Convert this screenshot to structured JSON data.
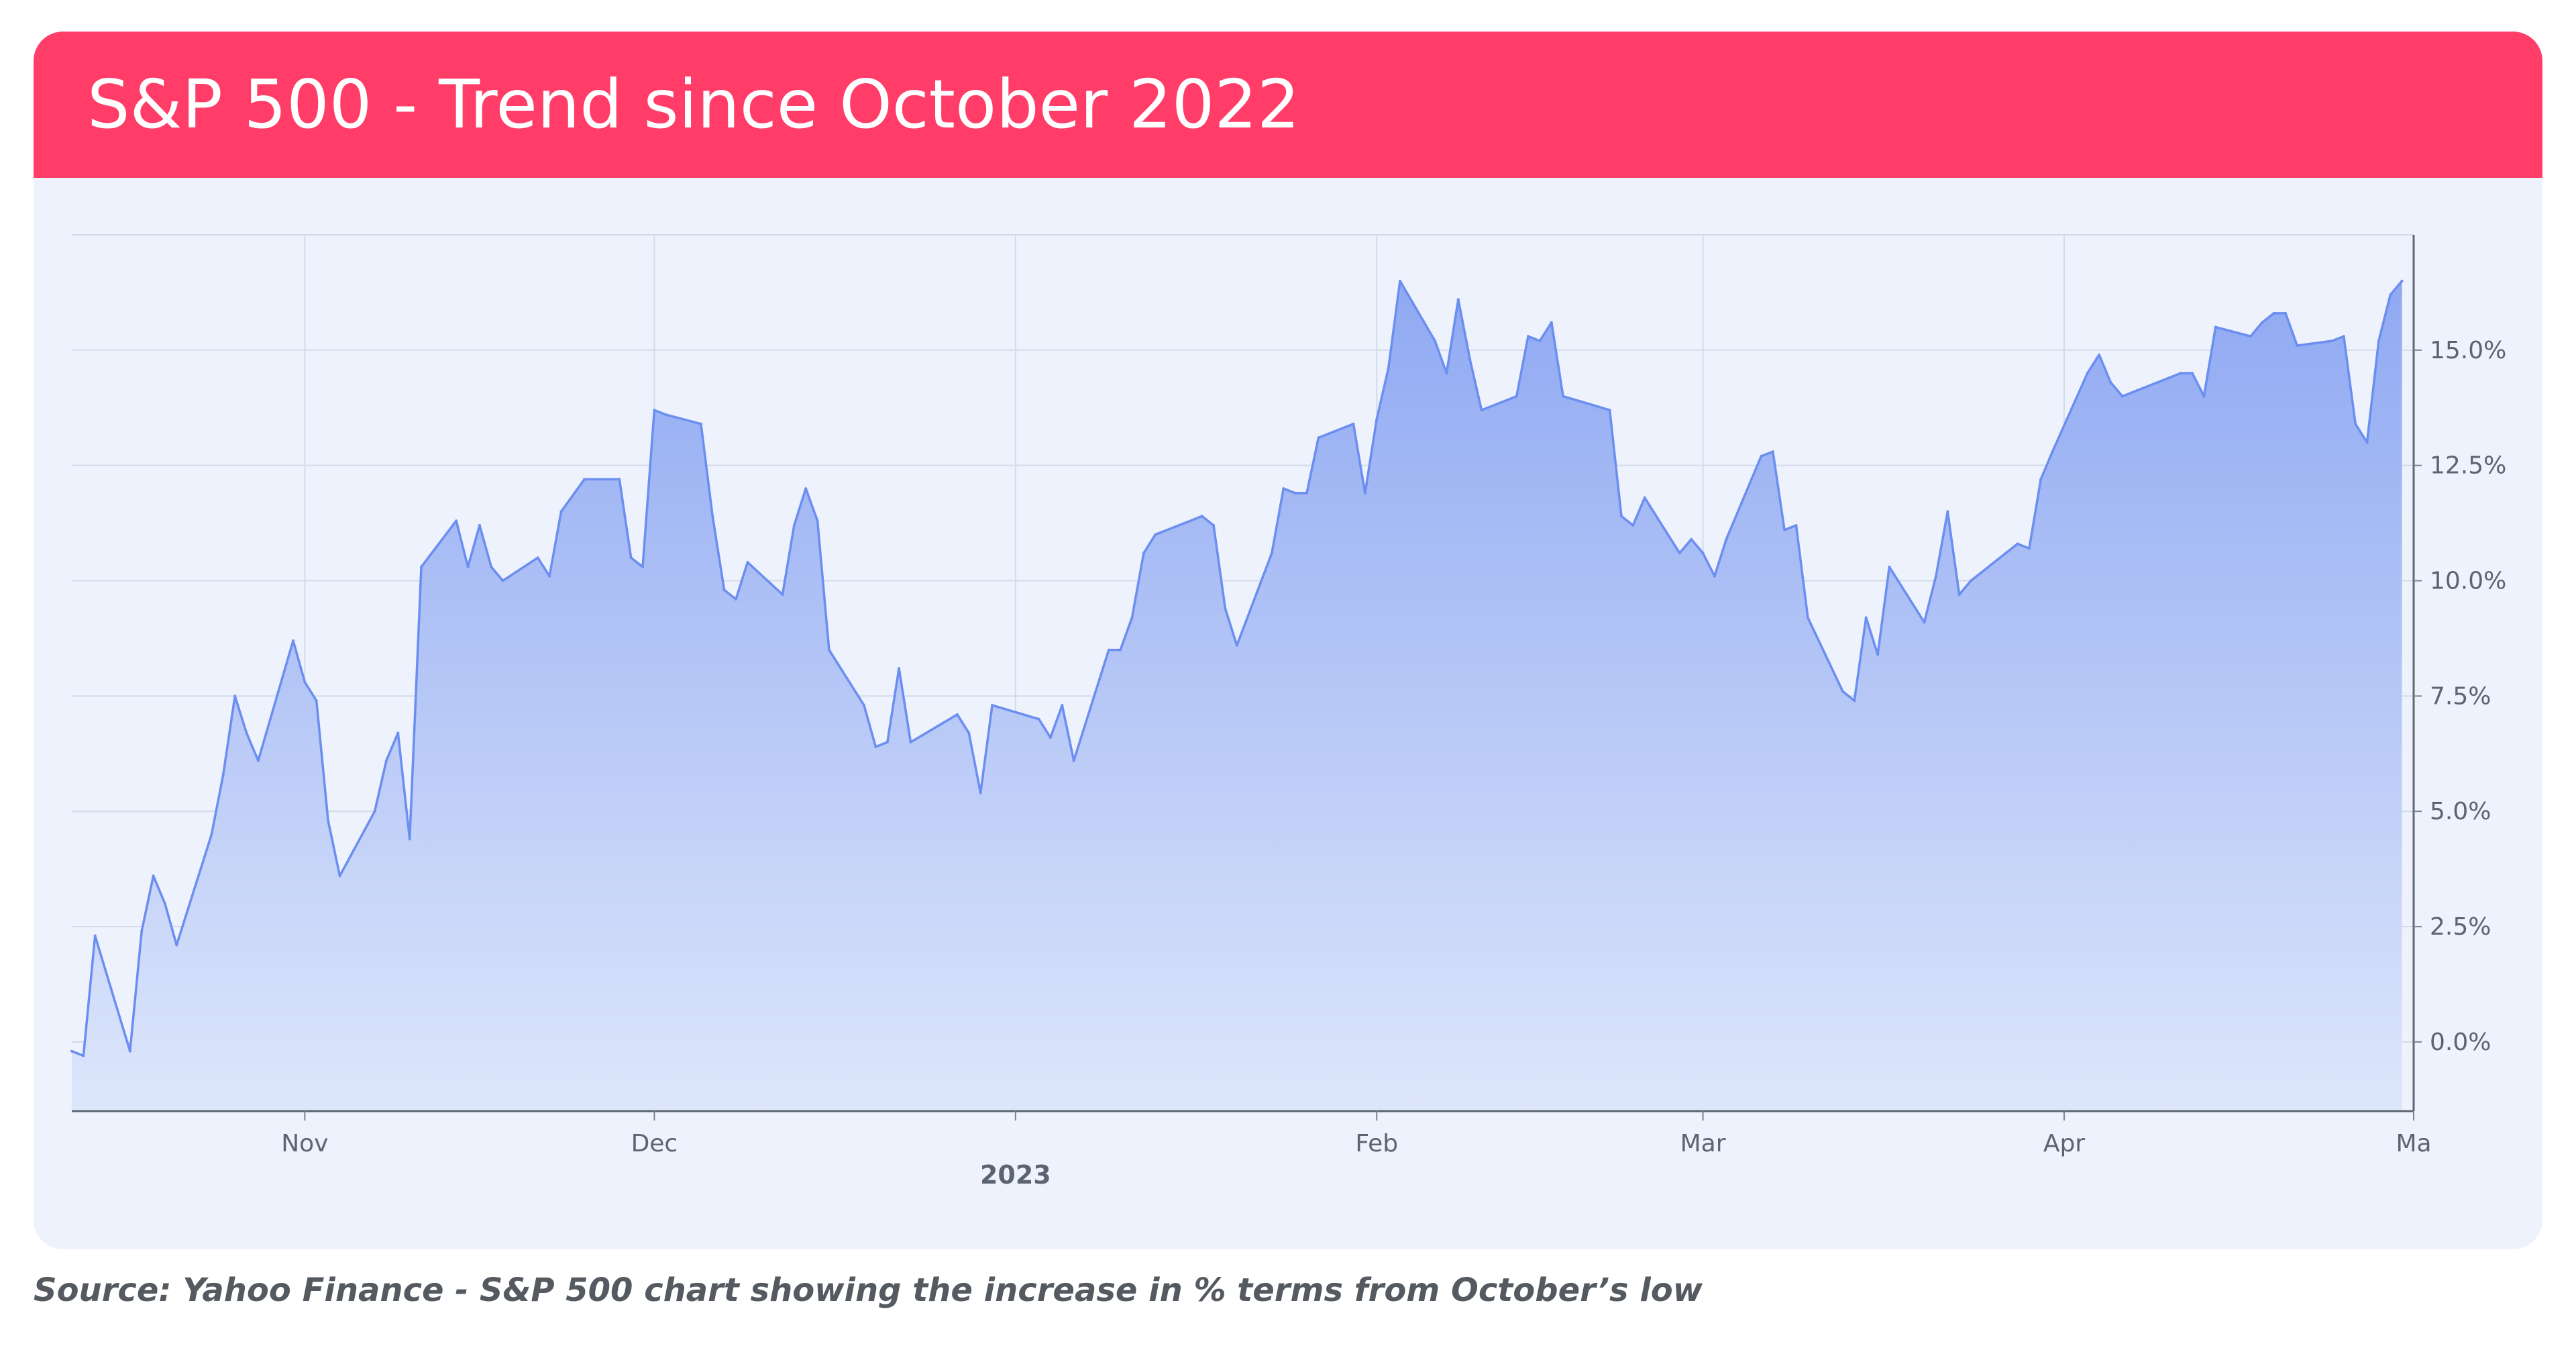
{
  "header": {
    "title": "S&P 500 - Trend since October 2022"
  },
  "caption": "Source: Yahoo Finance - S&P 500 chart showing the increase in % terms from October’s low",
  "colors": {
    "header_bg": "#ff3d68",
    "card_bg": "#edf2fd",
    "line": "#6b8ef0",
    "fill_top": "#8fa9f2",
    "fill_bottom": "#dde6fb",
    "grid": "#d3dae8",
    "axis_text": "#5b6472"
  },
  "chart_data": {
    "type": "area",
    "title": "",
    "xlabel": "",
    "ylabel": "",
    "unit": "%",
    "x_range": [
      "2022-10-12",
      "2023-05-01"
    ],
    "ylim": [
      -1.5,
      17.5
    ],
    "y_ticks": [
      0.0,
      2.5,
      5.0,
      7.5,
      10.0,
      12.5,
      15.0
    ],
    "y_tick_labels": [
      "0.0%",
      "2.5%",
      "5.0%",
      "7.5%",
      "10.0%",
      "12.5%",
      "15.0%"
    ],
    "x_ticks": [
      {
        "date": "2022-11-01",
        "label": "Nov"
      },
      {
        "date": "2022-12-01",
        "label": "Dec"
      },
      {
        "date": "2023-01-01",
        "label": "2023"
      },
      {
        "date": "2023-02-01",
        "label": "Feb"
      },
      {
        "date": "2023-03-01",
        "label": "Mar"
      },
      {
        "date": "2023-04-01",
        "label": "Apr"
      },
      {
        "date": "2023-05-01",
        "label": "Ma"
      }
    ],
    "grid": true,
    "y_axis_side": "right",
    "series": [
      {
        "points": [
          [
            "2022-10-12",
            -0.2
          ],
          [
            "2022-10-13",
            -0.3
          ],
          [
            "2022-10-14",
            2.3
          ],
          [
            "2022-10-17",
            -0.2
          ],
          [
            "2022-10-18",
            2.4
          ],
          [
            "2022-10-19",
            3.6
          ],
          [
            "2022-10-20",
            3.0
          ],
          [
            "2022-10-21",
            2.1
          ],
          [
            "2022-10-24",
            4.5
          ],
          [
            "2022-10-25",
            5.8
          ],
          [
            "2022-10-26",
            7.5
          ],
          [
            "2022-10-27",
            6.7
          ],
          [
            "2022-10-28",
            6.1
          ],
          [
            "2022-10-31",
            8.7
          ],
          [
            "2022-11-01",
            7.8
          ],
          [
            "2022-11-02",
            7.4
          ],
          [
            "2022-11-03",
            4.8
          ],
          [
            "2022-11-04",
            3.6
          ],
          [
            "2022-11-07",
            5.0
          ],
          [
            "2022-11-08",
            6.1
          ],
          [
            "2022-11-09",
            6.7
          ],
          [
            "2022-11-10",
            4.4
          ],
          [
            "2022-11-11",
            10.3
          ],
          [
            "2022-11-14",
            11.3
          ],
          [
            "2022-11-15",
            10.3
          ],
          [
            "2022-11-16",
            11.2
          ],
          [
            "2022-11-17",
            10.3
          ],
          [
            "2022-11-18",
            10.0
          ],
          [
            "2022-11-21",
            10.5
          ],
          [
            "2022-11-22",
            10.1
          ],
          [
            "2022-11-23",
            11.5
          ],
          [
            "2022-11-25",
            12.2
          ],
          [
            "2022-11-28",
            12.2
          ],
          [
            "2022-11-29",
            10.5
          ],
          [
            "2022-11-30",
            10.3
          ],
          [
            "2022-12-01",
            13.7
          ],
          [
            "2022-12-02",
            13.6
          ],
          [
            "2022-12-05",
            13.4
          ],
          [
            "2022-12-06",
            11.4
          ],
          [
            "2022-12-07",
            9.8
          ],
          [
            "2022-12-08",
            9.6
          ],
          [
            "2022-12-09",
            10.4
          ],
          [
            "2022-12-12",
            9.7
          ],
          [
            "2022-12-13",
            11.2
          ],
          [
            "2022-12-14",
            12.0
          ],
          [
            "2022-12-15",
            11.3
          ],
          [
            "2022-12-16",
            8.5
          ],
          [
            "2022-12-19",
            7.3
          ],
          [
            "2022-12-20",
            6.4
          ],
          [
            "2022-12-21",
            6.5
          ],
          [
            "2022-12-22",
            8.1
          ],
          [
            "2022-12-23",
            6.5
          ],
          [
            "2022-12-27",
            7.1
          ],
          [
            "2022-12-28",
            6.7
          ],
          [
            "2022-12-29",
            5.4
          ],
          [
            "2022-12-30",
            7.3
          ],
          [
            "2023-01-03",
            7.0
          ],
          [
            "2023-01-04",
            6.6
          ],
          [
            "2023-01-05",
            7.3
          ],
          [
            "2023-01-06",
            6.1
          ],
          [
            "2023-01-09",
            8.5
          ],
          [
            "2023-01-10",
            8.5
          ],
          [
            "2023-01-11",
            9.2
          ],
          [
            "2023-01-12",
            10.6
          ],
          [
            "2023-01-13",
            11.0
          ],
          [
            "2023-01-17",
            11.4
          ],
          [
            "2023-01-18",
            11.2
          ],
          [
            "2023-01-19",
            9.4
          ],
          [
            "2023-01-20",
            8.6
          ],
          [
            "2023-01-23",
            10.6
          ],
          [
            "2023-01-24",
            12.0
          ],
          [
            "2023-01-25",
            11.9
          ],
          [
            "2023-01-26",
            11.9
          ],
          [
            "2023-01-27",
            13.1
          ],
          [
            "2023-01-30",
            13.4
          ],
          [
            "2023-01-31",
            11.9
          ],
          [
            "2023-02-01",
            13.5
          ],
          [
            "2023-02-02",
            14.6
          ],
          [
            "2023-02-03",
            16.5
          ],
          [
            "2023-02-06",
            15.2
          ],
          [
            "2023-02-07",
            14.5
          ],
          [
            "2023-02-08",
            16.1
          ],
          [
            "2023-02-09",
            14.8
          ],
          [
            "2023-02-10",
            13.7
          ],
          [
            "2023-02-13",
            14.0
          ],
          [
            "2023-02-14",
            15.3
          ],
          [
            "2023-02-15",
            15.2
          ],
          [
            "2023-02-16",
            15.6
          ],
          [
            "2023-02-17",
            14.0
          ],
          [
            "2023-02-21",
            13.7
          ],
          [
            "2023-02-22",
            11.4
          ],
          [
            "2023-02-23",
            11.2
          ],
          [
            "2023-02-24",
            11.8
          ],
          [
            "2023-02-27",
            10.6
          ],
          [
            "2023-02-28",
            10.9
          ],
          [
            "2023-03-01",
            10.6
          ],
          [
            "2023-03-02",
            10.1
          ],
          [
            "2023-03-03",
            10.9
          ],
          [
            "2023-03-06",
            12.7
          ],
          [
            "2023-03-07",
            12.8
          ],
          [
            "2023-03-08",
            11.1
          ],
          [
            "2023-03-09",
            11.2
          ],
          [
            "2023-03-10",
            9.2
          ],
          [
            "2023-03-13",
            7.6
          ],
          [
            "2023-03-14",
            7.4
          ],
          [
            "2023-03-15",
            9.2
          ],
          [
            "2023-03-16",
            8.4
          ],
          [
            "2023-03-17",
            10.3
          ],
          [
            "2023-03-20",
            9.1
          ],
          [
            "2023-03-21",
            10.1
          ],
          [
            "2023-03-22",
            11.5
          ],
          [
            "2023-03-23",
            9.7
          ],
          [
            "2023-03-24",
            10.0
          ],
          [
            "2023-03-27",
            10.6
          ],
          [
            "2023-03-28",
            10.8
          ],
          [
            "2023-03-29",
            10.7
          ],
          [
            "2023-03-30",
            12.2
          ],
          [
            "2023-03-31",
            12.8
          ],
          [
            "2023-04-03",
            14.5
          ],
          [
            "2023-04-04",
            14.9
          ],
          [
            "2023-04-05",
            14.3
          ],
          [
            "2023-04-06",
            14.0
          ],
          [
            "2023-04-10",
            14.4
          ],
          [
            "2023-04-11",
            14.5
          ],
          [
            "2023-04-12",
            14.5
          ],
          [
            "2023-04-13",
            14.0
          ],
          [
            "2023-04-14",
            15.5
          ],
          [
            "2023-04-17",
            15.3
          ],
          [
            "2023-04-18",
            15.6
          ],
          [
            "2023-04-19",
            15.8
          ],
          [
            "2023-04-20",
            15.8
          ],
          [
            "2023-04-21",
            15.1
          ],
          [
            "2023-04-24",
            15.2
          ],
          [
            "2023-04-25",
            15.3
          ],
          [
            "2023-04-26",
            13.4
          ],
          [
            "2023-04-27",
            13.0
          ],
          [
            "2023-04-28",
            15.2
          ],
          [
            "2023-04-29",
            16.2
          ],
          [
            "2023-04-30",
            16.5
          ]
        ]
      }
    ]
  }
}
